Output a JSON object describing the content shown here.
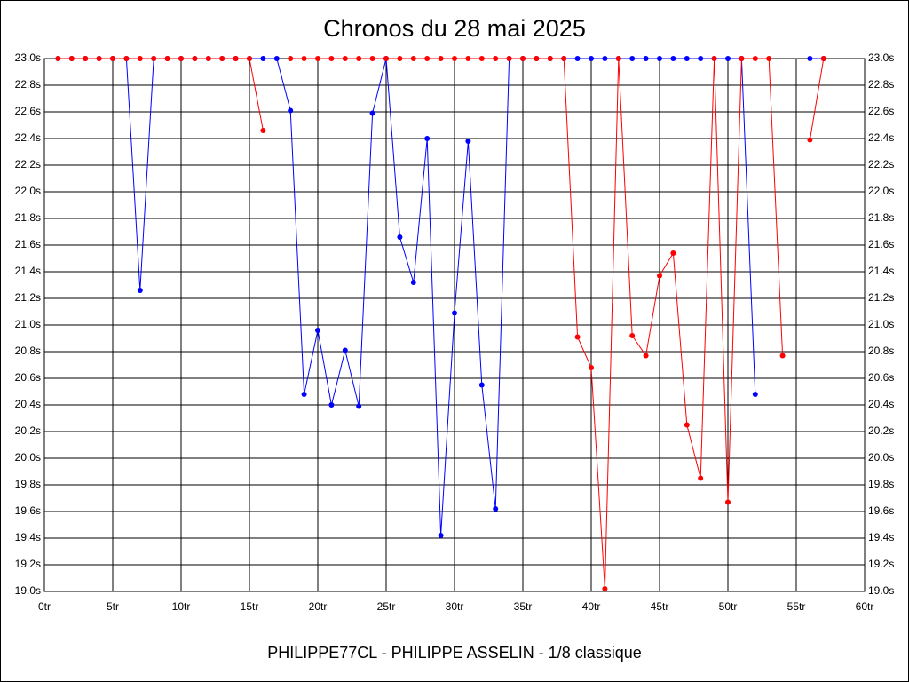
{
  "chart_data": {
    "type": "line",
    "title": "Chronos du 28 mai 2025",
    "subtitle": "PHILIPPE77CL - PHILIPPE ASSELIN - 1/8 classique",
    "x": [
      1,
      2,
      3,
      4,
      5,
      6,
      7,
      8,
      9,
      10,
      11,
      12,
      13,
      14,
      15,
      16,
      17,
      18,
      19,
      20,
      21,
      22,
      23,
      24,
      25,
      26,
      27,
      28,
      29,
      30,
      31,
      32,
      33,
      34,
      35,
      36,
      37,
      38,
      39,
      40,
      41,
      42,
      43,
      44,
      45,
      46,
      47,
      48,
      49,
      50,
      51,
      52,
      53,
      54,
      55,
      56,
      57
    ],
    "series": [
      {
        "name": "blue",
        "color": "#0000ff",
        "values": [
          23,
          23,
          23,
          23,
          23,
          23,
          21.26,
          23,
          23,
          23,
          23,
          23,
          23,
          23,
          23,
          23,
          23,
          22.61,
          20.48,
          20.96,
          20.4,
          20.81,
          20.39,
          22.59,
          23,
          21.66,
          21.32,
          22.4,
          19.42,
          21.09,
          22.38,
          20.55,
          19.62,
          23,
          23,
          23,
          23,
          23,
          23,
          23,
          23,
          23,
          23,
          23,
          23,
          23,
          23,
          23,
          23,
          23,
          23,
          20.48,
          null,
          null,
          null,
          23,
          23
        ]
      },
      {
        "name": "red",
        "color": "#ff0000",
        "values": [
          23,
          23,
          23,
          23,
          23,
          23,
          23,
          23,
          23,
          23,
          23,
          23,
          23,
          23,
          23,
          22.46,
          null,
          23,
          23,
          23,
          23,
          23,
          23,
          23,
          23,
          23,
          23,
          23,
          23,
          23,
          23,
          23,
          23,
          23,
          23,
          23,
          23,
          23,
          20.91,
          20.68,
          19.02,
          23,
          20.92,
          20.77,
          21.37,
          21.54,
          20.25,
          19.85,
          23,
          19.67,
          23,
          23,
          23,
          20.77,
          null,
          22.39,
          23
        ]
      }
    ],
    "xlim": [
      0,
      60
    ],
    "xticks": [
      {
        "value": 0,
        "label": "0tr"
      },
      {
        "value": 5,
        "label": "5tr"
      },
      {
        "value": 10,
        "label": "10tr"
      },
      {
        "value": 15,
        "label": "15tr"
      },
      {
        "value": 20,
        "label": "20tr"
      },
      {
        "value": 25,
        "label": "25tr"
      },
      {
        "value": 30,
        "label": "30tr"
      },
      {
        "value": 35,
        "label": "35tr"
      },
      {
        "value": 40,
        "label": "40tr"
      },
      {
        "value": 45,
        "label": "45tr"
      },
      {
        "value": 50,
        "label": "50tr"
      },
      {
        "value": 55,
        "label": "55tr"
      },
      {
        "value": 60,
        "label": "60tr"
      }
    ],
    "ylim": [
      19,
      23
    ],
    "yticks": [
      {
        "value": 19,
        "label": "19.0s"
      },
      {
        "value": 19.2,
        "label": "19.2s"
      },
      {
        "value": 19.4,
        "label": "19.4s"
      },
      {
        "value": 19.6,
        "label": "19.6s"
      },
      {
        "value": 19.8,
        "label": "19.8s"
      },
      {
        "value": 20,
        "label": "20.0s"
      },
      {
        "value": 20.2,
        "label": "20.2s"
      },
      {
        "value": 20.4,
        "label": "20.4s"
      },
      {
        "value": 20.6,
        "label": "20.6s"
      },
      {
        "value": 20.8,
        "label": "20.8s"
      },
      {
        "value": 21,
        "label": "21.0s"
      },
      {
        "value": 21.2,
        "label": "21.2s"
      },
      {
        "value": 21.4,
        "label": "21.4s"
      },
      {
        "value": 21.6,
        "label": "21.6s"
      },
      {
        "value": 21.8,
        "label": "21.8s"
      },
      {
        "value": 22,
        "label": "22.0s"
      },
      {
        "value": 22.2,
        "label": "22.2s"
      },
      {
        "value": 22.4,
        "label": "22.4s"
      },
      {
        "value": 22.6,
        "label": "22.6s"
      },
      {
        "value": 22.8,
        "label": "22.8s"
      },
      {
        "value": 23,
        "label": "23.0s"
      }
    ],
    "grid": true
  }
}
